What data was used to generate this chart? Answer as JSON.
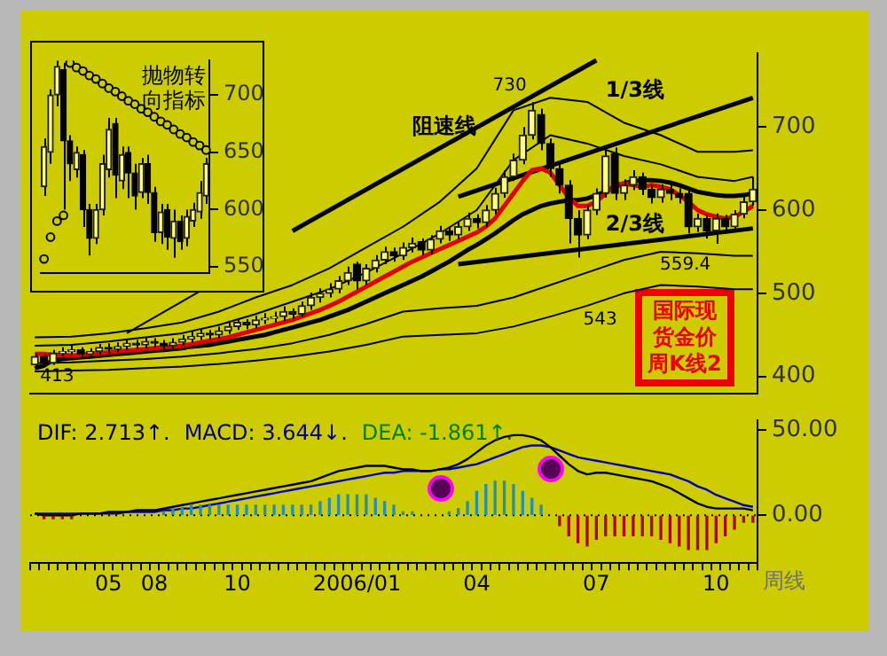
{
  "chart_data": [
    {
      "type": "candlestick",
      "title": "国际现货金价周K线2",
      "tick_labels": "y",
      "ylim": [
        379,
        789
      ],
      "yticks": [
        400,
        500,
        600,
        700
      ],
      "categories": [
        null,
        null,
        null,
        null,
        null,
        null,
        null,
        null,
        null,
        null,
        null,
        null,
        null,
        null,
        null,
        null,
        null,
        null,
        null,
        null,
        null,
        null,
        null,
        null,
        null,
        null,
        null,
        null,
        null,
        null,
        null,
        null,
        null,
        null,
        null,
        null,
        null,
        null,
        null,
        null,
        null,
        null,
        null,
        null,
        null,
        null,
        null,
        null,
        null,
        null,
        null,
        null,
        null,
        null,
        null,
        null,
        null,
        null,
        null,
        null,
        null,
        null,
        null,
        null,
        null,
        null,
        null,
        null,
        null,
        null,
        null,
        null,
        null,
        null,
        null,
        null,
        null,
        null,
        null
      ],
      "ohlc": [
        [
          414,
          428,
          413,
          424
        ],
        [
          424,
          427,
          415,
          416
        ],
        [
          416,
          432,
          414,
          428
        ],
        [
          428,
          435,
          424,
          430
        ],
        [
          430,
          437,
          426,
          432
        ],
        [
          432,
          435,
          422,
          427
        ],
        [
          427,
          434,
          423,
          430
        ],
        [
          430,
          439,
          426,
          435
        ],
        [
          435,
          440,
          428,
          433
        ],
        [
          433,
          441,
          429,
          436
        ],
        [
          436,
          445,
          432,
          440
        ],
        [
          440,
          444,
          433,
          438
        ],
        [
          438,
          447,
          434,
          442
        ],
        [
          442,
          446,
          435,
          440
        ],
        [
          440,
          444,
          432,
          437
        ],
        [
          437,
          446,
          433,
          441
        ],
        [
          441,
          450,
          437,
          445
        ],
        [
          445,
          454,
          441,
          448
        ],
        [
          448,
          457,
          444,
          452
        ],
        [
          452,
          456,
          445,
          450
        ],
        [
          450,
          460,
          446,
          455
        ],
        [
          455,
          465,
          451,
          460
        ],
        [
          460,
          470,
          456,
          465
        ],
        [
          465,
          469,
          457,
          462
        ],
        [
          462,
          473,
          458,
          468
        ],
        [
          468,
          476,
          463,
          470
        ],
        [
          470,
          478,
          465,
          472
        ],
        [
          472,
          484,
          467,
          478
        ],
        [
          478,
          482,
          469,
          475
        ],
        [
          475,
          490,
          471,
          485
        ],
        [
          485,
          501,
          480,
          495
        ],
        [
          495,
          506,
          489,
          500
        ],
        [
          500,
          512,
          495,
          505
        ],
        [
          505,
          521,
          500,
          515
        ],
        [
          515,
          532,
          510,
          525
        ],
        [
          535,
          538,
          505,
          515
        ],
        [
          515,
          535,
          510,
          530
        ],
        [
          530,
          546,
          525,
          540
        ],
        [
          540,
          556,
          535,
          550
        ],
        [
          550,
          555,
          538,
          545
        ],
        [
          545,
          561,
          540,
          555
        ],
        [
          555,
          567,
          549,
          560
        ],
        [
          562,
          566,
          546,
          552
        ],
        [
          552,
          570,
          547,
          565
        ],
        [
          565,
          581,
          560,
          575
        ],
        [
          575,
          580,
          563,
          570
        ],
        [
          570,
          586,
          565,
          580
        ],
        [
          580,
          597,
          575,
          590
        ],
        [
          590,
          595,
          578,
          585
        ],
        [
          585,
          606,
          580,
          600
        ],
        [
          600,
          627,
          595,
          620
        ],
        [
          620,
          648,
          615,
          640
        ],
        [
          640,
          668,
          635,
          660
        ],
        [
          660,
          700,
          655,
          690
        ],
        [
          690,
          730,
          685,
          720
        ],
        [
          715,
          722,
          672,
          680
        ],
        [
          680,
          686,
          640,
          650
        ],
        [
          650,
          656,
          620,
          630
        ],
        [
          630,
          636,
          560,
          590
        ],
        [
          590,
          600,
          543,
          570
        ],
        [
          570,
          606,
          565,
          600
        ],
        [
          600,
          626,
          594,
          620
        ],
        [
          620,
          672,
          615,
          665
        ],
        [
          668,
          675,
          612,
          620
        ],
        [
          620,
          637,
          612,
          630
        ],
        [
          630,
          648,
          624,
          640
        ],
        [
          640,
          645,
          618,
          625
        ],
        [
          625,
          630,
          608,
          615
        ],
        [
          615,
          631,
          609,
          625
        ],
        [
          625,
          630,
          612,
          620
        ],
        [
          620,
          626,
          608,
          615
        ],
        [
          620,
          624,
          572,
          580
        ],
        [
          580,
          596,
          574,
          590
        ],
        [
          590,
          594,
          566,
          575
        ],
        [
          575,
          596,
          559.4,
          590
        ],
        [
          590,
          594,
          572,
          580
        ],
        [
          580,
          600,
          575,
          595
        ],
        [
          595,
          616,
          590,
          610
        ],
        [
          610,
          640,
          605,
          625
        ]
      ],
      "series": [
        {
          "type": "line",
          "color": "#e00000",
          "values": [
            427,
            427,
            426,
            426,
            425,
            426,
            427,
            428,
            429,
            430,
            431,
            432,
            433,
            434,
            435,
            436,
            437,
            439,
            441,
            443,
            445,
            447,
            450,
            453,
            456,
            459,
            462,
            465,
            468,
            472,
            476,
            480,
            485,
            490,
            496,
            502,
            508,
            514,
            520,
            526,
            532,
            538,
            543,
            548,
            553,
            558,
            563,
            568,
            573,
            580,
            590,
            605,
            620,
            635,
            648,
            650,
            645,
            630,
            615,
            605,
            605,
            610,
            620,
            630,
            632,
            630,
            628,
            630,
            628,
            625,
            618,
            610,
            600,
            595,
            592,
            590,
            592,
            598,
            605
          ]
        },
        {
          "type": "line",
          "color": "#000000",
          "values": [
            410,
            413,
            420,
            421,
            422,
            423,
            424,
            425,
            426,
            427,
            428,
            429,
            430,
            431,
            432,
            433,
            434,
            436,
            437,
            438,
            440,
            442,
            444,
            446,
            448,
            450,
            453,
            456,
            459,
            462,
            465,
            468,
            472,
            476,
            480,
            485,
            490,
            495,
            500,
            505,
            510,
            515,
            520,
            526,
            532,
            538,
            545,
            552,
            558,
            565,
            572,
            580,
            588,
            595,
            600,
            605,
            608,
            610,
            612,
            612,
            614,
            618,
            622,
            628,
            632,
            635,
            636,
            636,
            635,
            633,
            630,
            626,
            622,
            620,
            618,
            617,
            617,
            618,
            620
          ]
        },
        {
          "type": "line",
          "color": "#000000",
          "values": [
            447,
            null,
            null,
            null,
            448,
            null,
            null,
            null,
            452,
            null,
            null,
            null,
            458,
            null,
            null,
            null,
            465,
            null,
            null,
            null,
            478,
            null,
            null,
            null,
            495,
            null,
            null,
            null,
            510,
            null,
            null,
            null,
            530,
            null,
            null,
            null,
            555,
            null,
            null,
            null,
            580,
            null,
            null,
            null,
            610,
            null,
            null,
            null,
            650,
            null,
            null,
            null,
            720,
            null,
            null,
            null,
            735,
            null,
            null,
            null,
            730,
            null,
            null,
            null,
            705,
            null,
            null,
            null,
            690,
            null,
            null,
            null,
            670,
            null,
            null,
            null,
            670,
            null,
            672
          ]
        },
        {
          "type": "line",
          "color": "#000000",
          "values": [
            437,
            null,
            null,
            null,
            438,
            null,
            null,
            null,
            442,
            null,
            null,
            null,
            447,
            null,
            null,
            null,
            452,
            null,
            null,
            null,
            462,
            null,
            null,
            null,
            475,
            null,
            null,
            null,
            490,
            null,
            null,
            null,
            505,
            null,
            null,
            null,
            525,
            null,
            null,
            null,
            548,
            null,
            null,
            null,
            572,
            null,
            null,
            null,
            600,
            null,
            null,
            null,
            660,
            null,
            null,
            null,
            690,
            null,
            null,
            null,
            680,
            null,
            null,
            null,
            665,
            null,
            null,
            null,
            655,
            null,
            null,
            null,
            640,
            null,
            null,
            null,
            635,
            null,
            640
          ]
        },
        {
          "type": "line",
          "color": "#000000",
          "values": [
            416,
            null,
            null,
            null,
            417,
            null,
            null,
            null,
            419,
            null,
            null,
            null,
            421,
            null,
            null,
            null,
            424,
            null,
            null,
            null,
            428,
            null,
            null,
            null,
            433,
            null,
            null,
            null,
            440,
            null,
            null,
            null,
            450,
            null,
            null,
            null,
            463,
            null,
            null,
            null,
            478,
            null,
            null,
            null,
            482,
            null,
            null,
            null,
            485,
            null,
            null,
            null,
            495,
            null,
            null,
            null,
            510,
            null,
            null,
            null,
            525,
            null,
            null,
            null,
            540,
            null,
            null,
            null,
            550,
            null,
            null,
            null,
            548,
            null,
            null,
            null,
            545,
            null,
            545
          ]
        },
        {
          "type": "line",
          "color": "#000000",
          "values": [
            406,
            null,
            null,
            null,
            407,
            null,
            null,
            null,
            408,
            null,
            null,
            null,
            410,
            null,
            null,
            null,
            412,
            null,
            null,
            null,
            415,
            null,
            null,
            null,
            419,
            null,
            null,
            null,
            424,
            null,
            null,
            null,
            430,
            null,
            null,
            null,
            438,
            null,
            null,
            null,
            448,
            null,
            null,
            null,
            450,
            null,
            null,
            null,
            452,
            null,
            null,
            null,
            460,
            null,
            null,
            null,
            472,
            null,
            null,
            null,
            485,
            null,
            null,
            null,
            500,
            null,
            null,
            null,
            510,
            null,
            null,
            null,
            508,
            null,
            null,
            null,
            505,
            null,
            505
          ]
        },
        {
          "type": "line",
          "name": "阻速线",
          "color": "#000000",
          "values": [
            null,
            null,
            null,
            null,
            null,
            null,
            null,
            null,
            null,
            null,
            null,
            null,
            null,
            null,
            null,
            null,
            null,
            null,
            null,
            null,
            null,
            null,
            null,
            null,
            null,
            null,
            null,
            null,
            575,
            null,
            null,
            null,
            null,
            null,
            null,
            null,
            null,
            null,
            null,
            null,
            null,
            null,
            null,
            null,
            null,
            null,
            null,
            null,
            null,
            null,
            null,
            null,
            null,
            null,
            null,
            null,
            null,
            null,
            null,
            null,
            null,
            780,
            null,
            null,
            null,
            null,
            null,
            null,
            null,
            null,
            null,
            null,
            null,
            null,
            null,
            null,
            null,
            null,
            null
          ]
        },
        {
          "type": "line",
          "name": "1/3线",
          "color": "#000000",
          "values": [
            null,
            null,
            null,
            null,
            null,
            null,
            null,
            null,
            null,
            null,
            null,
            null,
            null,
            null,
            null,
            null,
            null,
            null,
            null,
            null,
            null,
            null,
            null,
            null,
            null,
            null,
            null,
            null,
            null,
            null,
            null,
            null,
            null,
            null,
            null,
            null,
            null,
            null,
            null,
            null,
            null,
            null,
            null,
            null,
            null,
            null,
            616,
            null,
            null,
            null,
            null,
            null,
            null,
            null,
            null,
            null,
            null,
            null,
            null,
            null,
            null,
            null,
            null,
            null,
            null,
            null,
            null,
            null,
            null,
            null,
            null,
            null,
            null,
            null,
            null,
            null,
            null,
            null,
            735
          ]
        },
        {
          "type": "line",
          "name": "2/3线",
          "color": "#000000",
          "values": [
            null,
            null,
            null,
            null,
            null,
            null,
            null,
            null,
            null,
            null,
            null,
            null,
            null,
            null,
            null,
            null,
            null,
            null,
            null,
            null,
            null,
            null,
            null,
            null,
            null,
            null,
            null,
            null,
            null,
            null,
            null,
            null,
            null,
            null,
            null,
            null,
            null,
            null,
            null,
            null,
            null,
            null,
            null,
            null,
            null,
            null,
            535,
            null,
            null,
            null,
            null,
            null,
            null,
            null,
            null,
            null,
            null,
            null,
            null,
            null,
            null,
            null,
            null,
            null,
            null,
            null,
            null,
            null,
            null,
            null,
            null,
            null,
            null,
            null,
            null,
            null,
            null,
            null,
            578
          ]
        },
        {
          "type": "line",
          "color": "#000000",
          "values": [
            null,
            null,
            null,
            null,
            null,
            null,
            null,
            null,
            null,
            null,
            452,
            null,
            null,
            null,
            null,
            null,
            null,
            null,
            503,
            null,
            null,
            null,
            null,
            null,
            null,
            null,
            null,
            null,
            null,
            null,
            null,
            null,
            null,
            null,
            null,
            null,
            null,
            null,
            null,
            null,
            null,
            null,
            null,
            null,
            null,
            null,
            null,
            null,
            null,
            null,
            null,
            null,
            null,
            null,
            null,
            null,
            null,
            null,
            null,
            null,
            null,
            null,
            null,
            null,
            null,
            null,
            null,
            null,
            null,
            null,
            null,
            null,
            null,
            null,
            null,
            null,
            null,
            null,
            null
          ]
        }
      ],
      "annotations": [
        {
          "text": "730",
          "y": 730
        },
        {
          "text": "543",
          "y": 543
        },
        {
          "text": "413",
          "y": 413
        },
        {
          "text": "559.4",
          "y": 559.4
        }
      ]
    },
    {
      "type": "candlestick",
      "title": "抛物转向指标",
      "tick_labels": "y",
      "ylim": [
        545,
        730
      ],
      "yticks": [
        550,
        600,
        650,
        700
      ],
      "marker": "circle",
      "categories": [
        null,
        null,
        null,
        null,
        null,
        null,
        null,
        null,
        null,
        null,
        null,
        null,
        null,
        null,
        null,
        null,
        null,
        null,
        null,
        null,
        null,
        null,
        null,
        null,
        null,
        null
      ],
      "ohlc": [
        [
          620,
          662,
          612,
          655
        ],
        [
          650,
          705,
          640,
          700
        ],
        [
          700,
          730,
          690,
          725
        ],
        [
          722,
          728,
          600,
          660
        ],
        [
          660,
          665,
          625,
          640
        ],
        [
          635,
          655,
          628,
          650
        ],
        [
          648,
          652,
          585,
          600
        ],
        [
          600,
          605,
          560,
          575
        ],
        [
          575,
          605,
          570,
          600
        ],
        [
          600,
          648,
          595,
          640
        ],
        [
          635,
          680,
          628,
          670
        ],
        [
          675,
          680,
          610,
          630
        ],
        [
          625,
          655,
          618,
          648
        ],
        [
          650,
          655,
          610,
          632
        ],
        [
          632,
          640,
          600,
          612
        ],
        [
          615,
          645,
          610,
          640
        ],
        [
          640,
          648,
          605,
          615
        ],
        [
          615,
          620,
          572,
          580
        ],
        [
          580,
          605,
          570,
          598
        ],
        [
          600,
          605,
          565,
          576
        ],
        [
          575,
          600,
          558,
          590
        ],
        [
          590,
          595,
          565,
          572
        ],
        [
          575,
          600,
          568,
          594
        ],
        [
          590,
          606,
          585,
          600
        ],
        [
          598,
          625,
          592,
          615
        ],
        [
          612,
          645,
          605,
          640
        ]
      ],
      "series": [
        {
          "type": "scatter",
          "color": "#000000",
          "values": [
            557,
            576,
            590,
            595,
            728,
            724,
            721,
            717,
            714,
            710,
            706,
            703,
            699,
            695,
            692,
            688,
            685,
            681,
            677,
            674,
            670,
            666,
            663,
            659,
            656,
            652
          ]
        }
      ]
    },
    {
      "type": "line",
      "xlabel": "周线",
      "ylim": [
        -28,
        56
      ],
      "yticks": [
        {
          "value": 50,
          "label": "50.00"
        },
        {
          "value": 0,
          "label": "0.00"
        }
      ],
      "categories": [
        null,
        null,
        null,
        null,
        null,
        null,
        null,
        null,
        "05",
        null,
        null,
        null,
        null,
        "08",
        null,
        null,
        null,
        null,
        null,
        null,
        null,
        null,
        "10",
        null,
        null,
        null,
        null,
        null,
        null,
        null,
        null,
        null,
        null,
        null,
        null,
        "2006/01",
        null,
        null,
        null,
        null,
        null,
        null,
        null,
        null,
        null,
        null,
        null,
        null,
        "04",
        null,
        null,
        null,
        null,
        null,
        null,
        null,
        null,
        null,
        null,
        null,
        null,
        "07",
        null,
        null,
        null,
        null,
        null,
        null,
        null,
        null,
        null,
        null,
        null,
        null,
        "10",
        null,
        null,
        null,
        null
      ],
      "series": [
        {
          "type": "bar",
          "color": "#1e90c0",
          "values": [
            null,
            null,
            null,
            null,
            null,
            null,
            null,
            null,
            null,
            null,
            null,
            null,
            null,
            null,
            2,
            4,
            4,
            6,
            6,
            6,
            6,
            6,
            6,
            6,
            6,
            6,
            6,
            6,
            6,
            6,
            6,
            8,
            10,
            12,
            12,
            12,
            12,
            10,
            8,
            6,
            2,
            2,
            null,
            null,
            null,
            2,
            4,
            8,
            14,
            18,
            20,
            20,
            18,
            14,
            10,
            6,
            null,
            null,
            null,
            null,
            null,
            null,
            null,
            null,
            null,
            null,
            null,
            null,
            null,
            null,
            null,
            null,
            null,
            null,
            null,
            null,
            null,
            null,
            null
          ]
        },
        {
          "type": "bar",
          "color": "#b00000",
          "values": [
            null,
            -2,
            -2,
            -2,
            -2,
            null,
            null,
            null,
            null,
            null,
            null,
            null,
            null,
            null,
            null,
            null,
            null,
            null,
            null,
            null,
            null,
            null,
            null,
            null,
            null,
            null,
            null,
            null,
            null,
            null,
            null,
            null,
            null,
            null,
            null,
            null,
            null,
            null,
            null,
            null,
            null,
            null,
            null,
            null,
            null,
            null,
            null,
            null,
            null,
            null,
            null,
            null,
            null,
            null,
            null,
            null,
            null,
            -6,
            -12,
            -16,
            -18,
            -14,
            -12,
            -12,
            -12,
            -12,
            -12,
            -12,
            -14,
            -16,
            -18,
            -20,
            -20,
            -20,
            -16,
            -12,
            -8,
            -4,
            -4
          ]
        },
        {
          "type": "line",
          "color": "#000000",
          "values": [
            1,
            0,
            0,
            0,
            0,
            1,
            1,
            1,
            2,
            2,
            2,
            3,
            3,
            3,
            4,
            5,
            6,
            7,
            8,
            9,
            10,
            11,
            12,
            13,
            14,
            15,
            16,
            17,
            18,
            19,
            20,
            22,
            24,
            26,
            27,
            28,
            29,
            29,
            29,
            28,
            27,
            27,
            26,
            26,
            27,
            28,
            30,
            33,
            37,
            41,
            44,
            46,
            47,
            47,
            46,
            44,
            40,
            35,
            30,
            26,
            24,
            25,
            25,
            24,
            23,
            22,
            21,
            20,
            18,
            16,
            13,
            10,
            7,
            5,
            4,
            4,
            4,
            4,
            3
          ]
        },
        {
          "type": "line",
          "color": "#0000c0",
          "values": [
            1,
            1,
            1,
            1,
            1,
            1,
            1,
            1,
            1,
            1,
            2,
            2,
            2,
            2,
            3,
            3,
            4,
            4,
            5,
            6,
            7,
            8,
            9,
            10,
            11,
            12,
            13,
            14,
            15,
            16,
            17,
            18,
            19,
            20,
            21,
            22,
            23,
            24,
            25,
            25,
            26,
            26,
            26,
            26,
            27,
            27,
            28,
            29,
            30,
            32,
            34,
            36,
            38,
            40,
            41,
            41,
            40,
            38,
            36,
            34,
            33,
            32,
            31,
            30,
            29,
            28,
            27,
            26,
            25,
            24,
            22,
            20,
            17,
            15,
            12,
            10,
            8,
            6,
            5
          ]
        }
      ],
      "ref_lines": [
        {
          "axis": "y",
          "value": 0,
          "line_style": "dotted"
        }
      ],
      "annotations": [
        "DIF: 2.713↑.",
        "MACD: 3.644↓.",
        "DEA: -1.861↑."
      ]
    }
  ]
}
